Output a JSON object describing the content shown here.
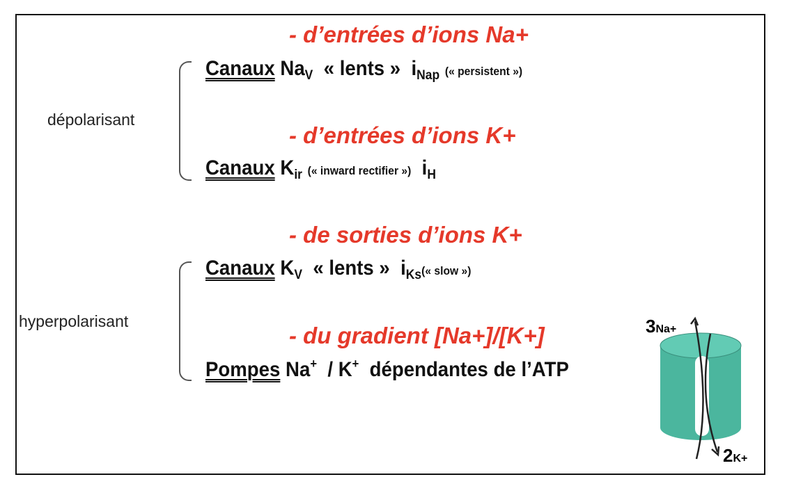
{
  "groups": [
    {
      "label": "dépolarisant",
      "items": [
        {
          "heading": "- d’entrées d’ions Na+",
          "canaux": "Canaux",
          "ion": "Na",
          "ion_sub": "V",
          "desc": "« lents »",
          "current": "i",
          "current_sub": "Nap",
          "note": "(« persistent »)"
        },
        {
          "heading": "- d’entrées d’ions K+",
          "canaux": "Canaux",
          "ion": "K",
          "ion_sub": "ir",
          "note": "(« inward rectifier »)",
          "current": "i",
          "current_sub": "H"
        }
      ]
    },
    {
      "label": "hyperpolarisant",
      "items": [
        {
          "heading": "- de sorties d’ions K+",
          "canaux": "Canaux",
          "ion": "K",
          "ion_sub": "V",
          "desc": "« lents »",
          "current": "i",
          "current_sub": "Ks",
          "note": "(« slow »)"
        },
        {
          "heading": "- du gradient [Na+]/[K+]",
          "pompes": "Pompes",
          "na": "Na",
          "na_sup": "+",
          "sep": "/",
          "k": "K",
          "k_sup": "+",
          "rest": "dépendantes de l’ATP"
        }
      ]
    }
  ],
  "pump": {
    "na_count": "3",
    "na_label": "Na+",
    "k_count": "2",
    "k_label": "K+",
    "color": "#4bbfa6"
  },
  "colors": {
    "heading": "#e5392a"
  }
}
